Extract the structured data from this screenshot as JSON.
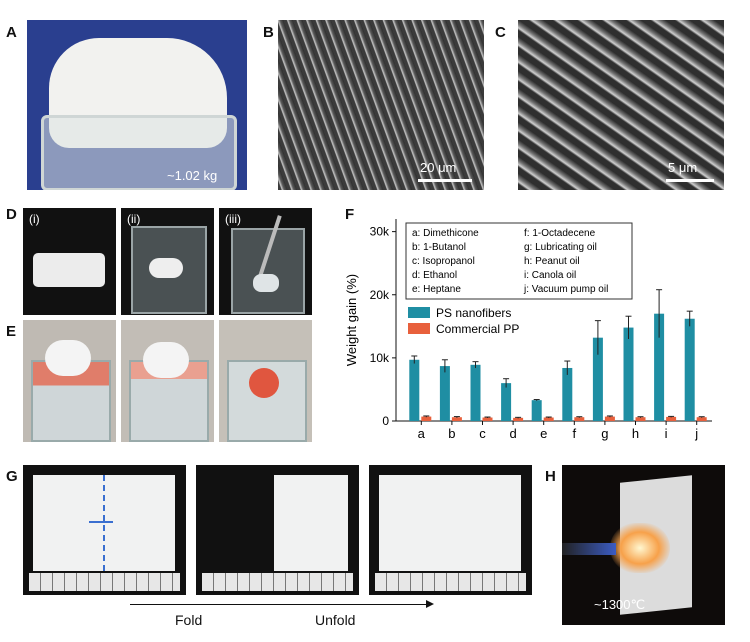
{
  "panels": {
    "A": {
      "label": "A",
      "caption": "~1.02 kg"
    },
    "B": {
      "label": "B",
      "scalebar": "20 μm"
    },
    "C": {
      "label": "C",
      "scalebar": "5 μm"
    },
    "D": {
      "label": "D",
      "subs": [
        "(i)",
        "(ii)",
        "(iii)"
      ]
    },
    "E": {
      "label": "E"
    },
    "F": {
      "label": "F"
    },
    "G": {
      "label": "G",
      "fold_label": "Fold",
      "unfold_label": "Unfold"
    },
    "H": {
      "label": "H",
      "caption": "~1300℃"
    }
  },
  "chart_data": {
    "type": "bar",
    "ylabel": "Weight gain (%)",
    "yticks": [
      "0",
      "10k",
      "20k",
      "30k"
    ],
    "ylim": [
      0,
      32000
    ],
    "categories": [
      "a",
      "b",
      "c",
      "d",
      "e",
      "f",
      "g",
      "h",
      "i",
      "j"
    ],
    "category_legend": [
      "a: Dimethicone",
      "f: 1-Octadecene",
      "b: 1-Butanol",
      "g: Lubricating oil",
      "c: Isopropanol",
      "h: Peanut oil",
      "d: Ethanol",
      "i: Canola oil",
      "e: Heptane",
      "j: Vacuum pump oil"
    ],
    "series": [
      {
        "name": "PS nanofibers",
        "color": "#1f8ea3",
        "values": [
          9700,
          8700,
          8900,
          6000,
          3300,
          8400,
          13200,
          14800,
          17000,
          16200
        ],
        "errors": [
          600,
          1000,
          500,
          700,
          100,
          1100,
          2700,
          1800,
          3800,
          1200
        ]
      },
      {
        "name": "Commercial PP",
        "color": "#e8603c",
        "values": [
          700,
          600,
          550,
          500,
          550,
          600,
          700,
          600,
          650,
          600
        ],
        "errors": [
          100,
          100,
          80,
          80,
          80,
          80,
          100,
          80,
          80,
          80
        ]
      }
    ]
  }
}
